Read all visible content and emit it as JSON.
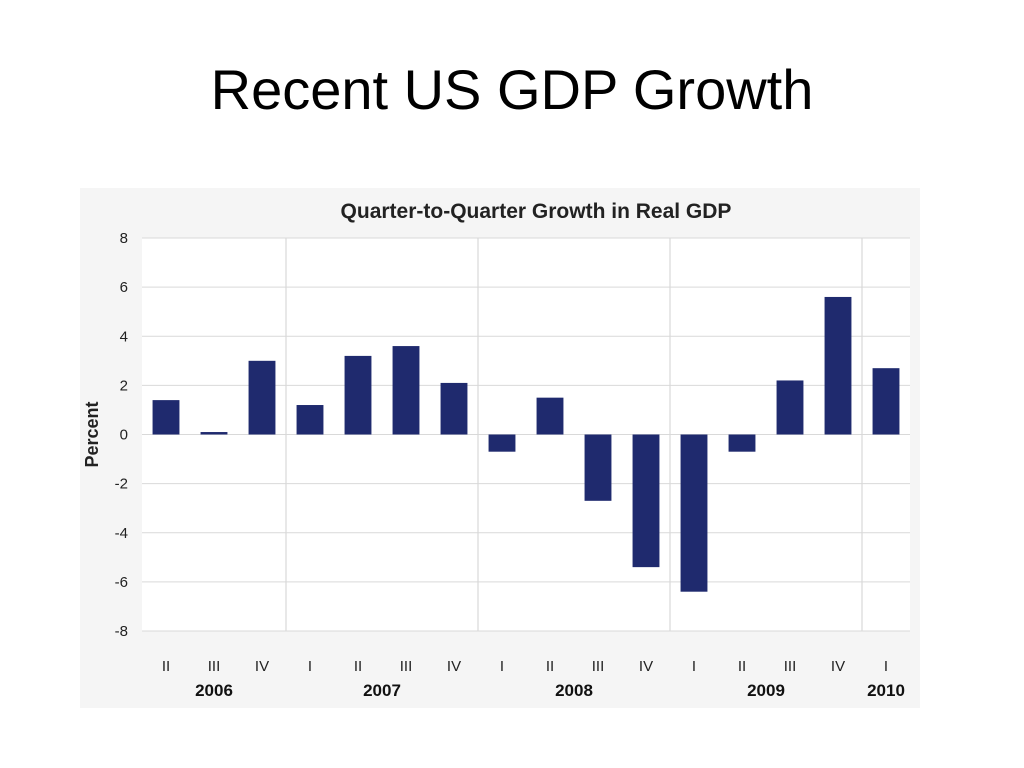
{
  "slide": {
    "title": "Recent US GDP Growth"
  },
  "colors": {
    "bar": "#1f2a6e",
    "grid": "#d9d9d9",
    "panel": "#f5f5f5",
    "plot_background": "#ffffff"
  },
  "chart_data": {
    "type": "bar",
    "title": "Quarter-to-Quarter Growth in Real GDP",
    "xlabel": "",
    "ylabel": "Percent",
    "ylim": [
      -8,
      8
    ],
    "yticks": [
      8,
      6,
      4,
      2,
      0,
      -2,
      -4,
      -6,
      -8
    ],
    "grid": true,
    "categories": [
      "II",
      "III",
      "IV",
      "I",
      "II",
      "III",
      "IV",
      "I",
      "II",
      "III",
      "IV",
      "I",
      "II",
      "III",
      "IV",
      "I"
    ],
    "years": [
      {
        "label": "2006",
        "start": 0,
        "end": 2
      },
      {
        "label": "2007",
        "start": 3,
        "end": 6
      },
      {
        "label": "2008",
        "start": 7,
        "end": 10
      },
      {
        "label": "2009",
        "start": 11,
        "end": 14
      },
      {
        "label": "2010",
        "start": 15,
        "end": 15
      }
    ],
    "values": [
      1.4,
      0.1,
      3.0,
      1.2,
      3.2,
      3.6,
      2.1,
      -0.7,
      1.5,
      -2.7,
      -5.4,
      -6.4,
      -0.7,
      2.2,
      5.6,
      2.7
    ]
  }
}
